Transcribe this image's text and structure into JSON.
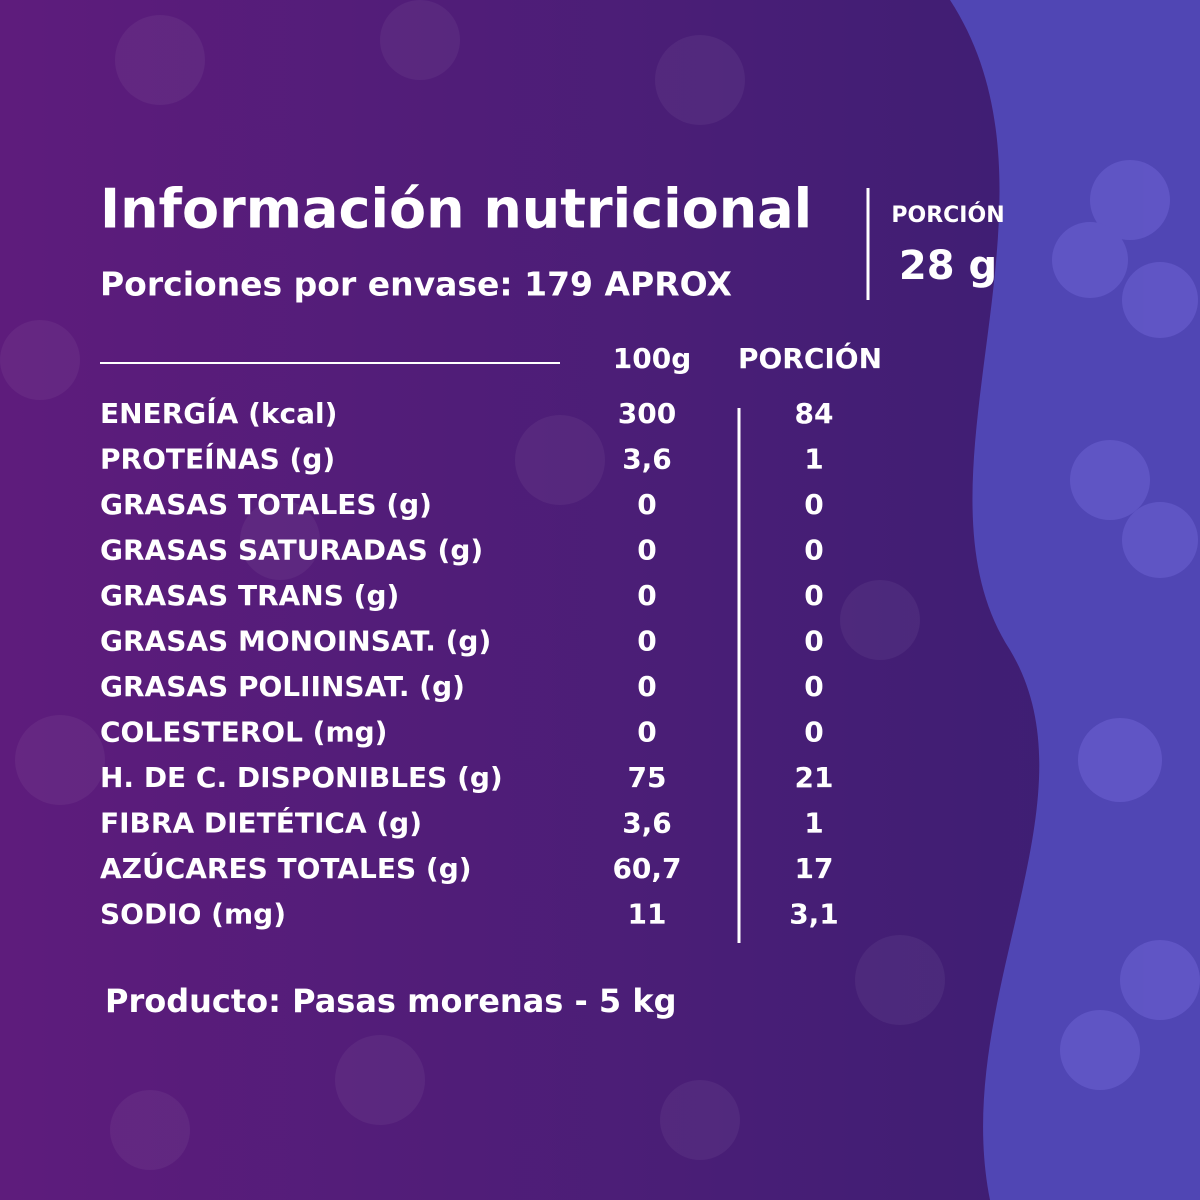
{
  "header": {
    "title": "Información nutricional",
    "subtitle": "Porciones por envase: 179 APROX"
  },
  "portion": {
    "label": "PORCIÓN",
    "value": "28 g"
  },
  "table": {
    "columns": [
      "100g",
      "PORCIÓN"
    ],
    "rows": [
      [
        "ENERGÍA (kcal)",
        "300",
        "84"
      ],
      [
        "PROTEÍNAS (g)",
        "3,6",
        "1"
      ],
      [
        "GRASAS TOTALES (g)",
        "0",
        "0"
      ],
      [
        "GRASAS SATURADAS (g)",
        "0",
        "0"
      ],
      [
        "GRASAS TRANS (g)",
        "0",
        "0"
      ],
      [
        "GRASAS MONOINSAT. (g)",
        "0",
        "0"
      ],
      [
        "GRASAS POLIINSAT. (g)",
        "0",
        "0"
      ],
      [
        "COLESTEROL (mg)",
        "0",
        "0"
      ],
      [
        "H. DE C. DISPONIBLES (g)",
        "75",
        "21"
      ],
      [
        "FIBRA DIETÉTICA (g)",
        "3,6",
        "1"
      ],
      [
        "AZÚCARES TOTALES (g)",
        "60,7",
        "17"
      ],
      [
        "SODIO (mg)",
        "11",
        "3,1"
      ]
    ]
  },
  "footer": "Producto: Pasas morenas - 5 kg"
}
